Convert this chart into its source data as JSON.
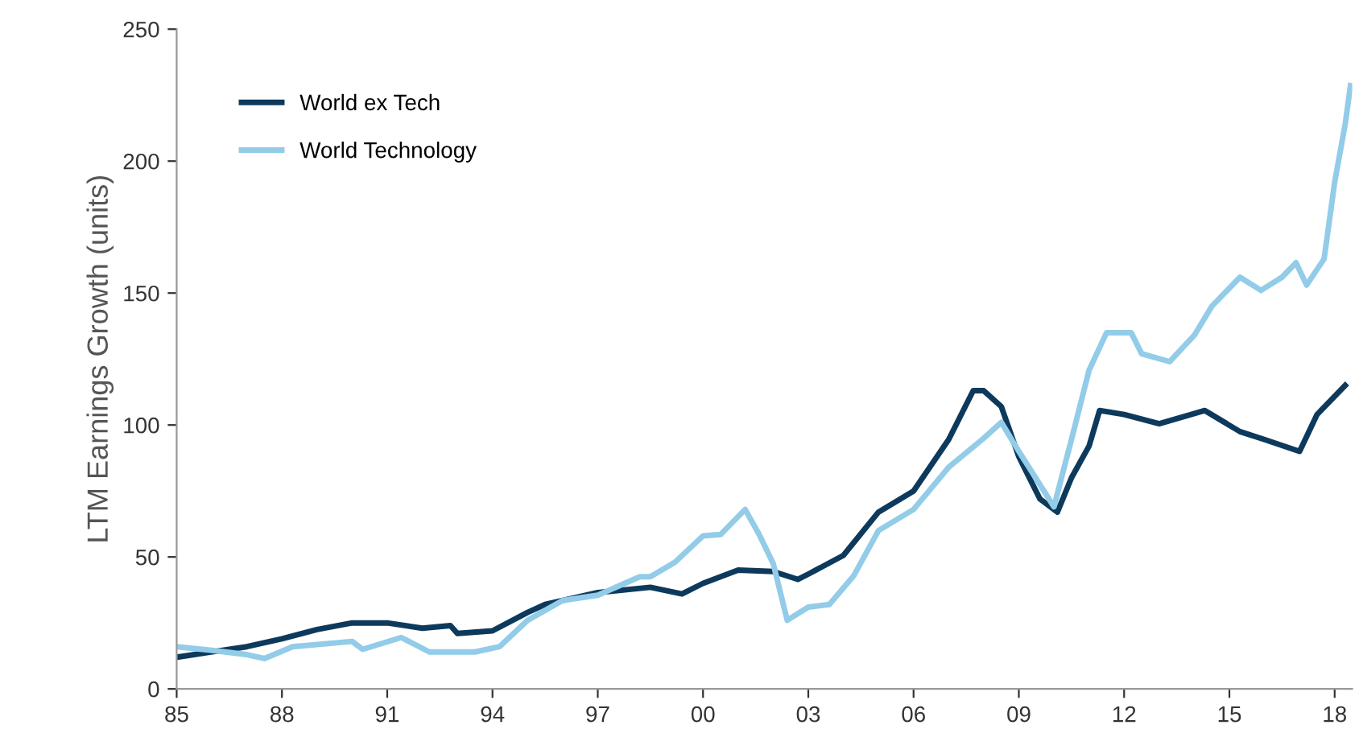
{
  "chart_data": {
    "type": "line",
    "ylabel": "LTM Earnings Growth (units)",
    "xlim": [
      1985,
      2018.5
    ],
    "ylim": [
      0,
      250
    ],
    "xticks": [
      {
        "value": 1985,
        "label": "85"
      },
      {
        "value": 1988,
        "label": "88"
      },
      {
        "value": 1991,
        "label": "91"
      },
      {
        "value": 1994,
        "label": "94"
      },
      {
        "value": 1997,
        "label": "97"
      },
      {
        "value": 2000,
        "label": "00"
      },
      {
        "value": 2003,
        "label": "03"
      },
      {
        "value": 2006,
        "label": "06"
      },
      {
        "value": 2009,
        "label": "09"
      },
      {
        "value": 2012,
        "label": "12"
      },
      {
        "value": 2015,
        "label": "15"
      },
      {
        "value": 2018,
        "label": "18"
      }
    ],
    "yticks": [
      0,
      50,
      100,
      150,
      200,
      250
    ],
    "grid": false,
    "legend": "top left",
    "marker": "none",
    "line_style": "solid",
    "series": [
      {
        "name": "World ex Tech",
        "color": "#0d3a5c",
        "x": [
          1985,
          1987,
          1988,
          1989,
          1990,
          1991,
          1992,
          1992.8,
          1993,
          1994,
          1995,
          1995.5,
          1997,
          1998.5,
          1999.4,
          2000,
          2001,
          2002,
          2002.7,
          2003,
          2004,
          2005,
          2006,
          2007,
          2007.7,
          2008,
          2008.5,
          2009,
          2009.6,
          2010.1,
          2010.5,
          2011,
          2011.3,
          2012,
          2013,
          2014.3,
          2015.3,
          2016,
          2017,
          2017.5,
          2018.3
        ],
        "values": [
          12,
          16,
          19,
          22.5,
          25,
          25,
          23,
          24,
          21,
          22,
          29,
          32,
          36.5,
          38.5,
          36,
          40,
          45,
          44.5,
          41.5,
          43.5,
          50.6,
          67,
          75,
          94.5,
          113,
          113,
          107,
          88,
          72,
          67,
          80,
          92,
          105.5,
          104,
          100.5,
          105.5,
          97.5,
          94.5,
          90,
          104,
          115
        ]
      },
      {
        "name": "World Technology",
        "color": "#92cce8",
        "x": [
          1985,
          1986,
          1987,
          1987.5,
          1988.3,
          1990,
          1990.3,
          1991.4,
          1992.2,
          1993.5,
          1994.2,
          1995,
          1996,
          1997,
          1998.2,
          1998.5,
          1999.2,
          2000,
          2000.5,
          2001.2,
          2001.6,
          2002,
          2002.4,
          2003,
          2003.6,
          2004.3,
          2005,
          2006,
          2007,
          2008,
          2008.5,
          2009,
          2010,
          2010.5,
          2011,
          2011.5,
          2012.2,
          2012.5,
          2013.3,
          2014,
          2014.5,
          2015.3,
          2015.9,
          2016.5,
          2016.9,
          2017.2,
          2017.7,
          2018,
          2018.3,
          2018.45
        ],
        "values": [
          16,
          14.6,
          13,
          11.5,
          16,
          18,
          15,
          19.5,
          14,
          14,
          16,
          26,
          33.5,
          35.5,
          42.5,
          42.5,
          48,
          58,
          58.5,
          68,
          58.5,
          47.5,
          26,
          31,
          32,
          43,
          60,
          68,
          84,
          95,
          101,
          90,
          69,
          94.5,
          120.7,
          135,
          135,
          127,
          124,
          134,
          145,
          156,
          151,
          156,
          161.5,
          153,
          163,
          192,
          214,
          228.6
        ]
      }
    ]
  }
}
